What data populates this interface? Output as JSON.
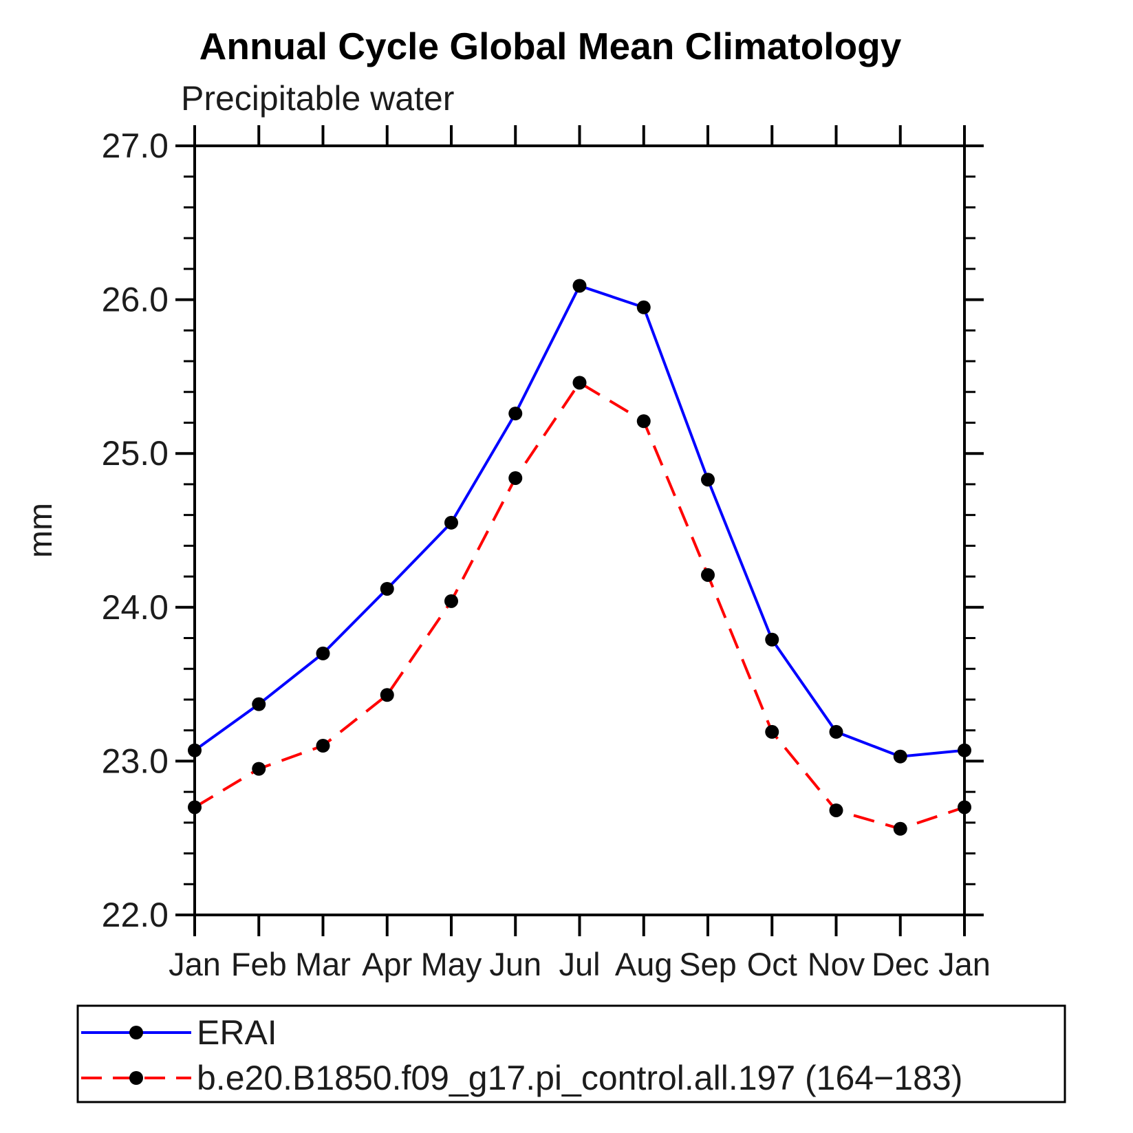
{
  "chart_data": {
    "type": "line",
    "title": "Annual Cycle Global Mean Climatology",
    "subtitle": "Precipitable water",
    "ylabel": "mm",
    "categories": [
      "Jan",
      "Feb",
      "Mar",
      "Apr",
      "May",
      "Jun",
      "Jul",
      "Aug",
      "Sep",
      "Oct",
      "Nov",
      "Dec",
      "Jan"
    ],
    "ylim": [
      22.0,
      27.0
    ],
    "yticks_major": [
      22,
      23,
      24,
      25,
      26,
      27
    ],
    "ytick_labels": [
      "22.0",
      "23.0",
      "24.0",
      "25.0",
      "26.0",
      "27.0"
    ],
    "ytick_minor_step": 0.2,
    "grid": false,
    "legend_position": "bottom",
    "series": [
      {
        "name": "ERAI",
        "color": "#0000ff",
        "line_style": "solid",
        "marker": "filled-circle",
        "marker_color": "#000000",
        "values": [
          23.07,
          23.37,
          23.7,
          24.12,
          24.55,
          25.26,
          26.09,
          25.95,
          24.83,
          23.79,
          23.19,
          23.03,
          23.07
        ]
      },
      {
        "name": "b.e20.B1850.f09_g17.pi_control.all.197 (164−183)",
        "color": "#ff0000",
        "line_style": "dashed",
        "marker": "filled-circle",
        "marker_color": "#000000",
        "values": [
          22.7,
          22.95,
          23.1,
          23.43,
          24.04,
          24.84,
          25.46,
          25.21,
          24.21,
          23.19,
          22.68,
          22.56,
          22.7
        ]
      }
    ]
  }
}
